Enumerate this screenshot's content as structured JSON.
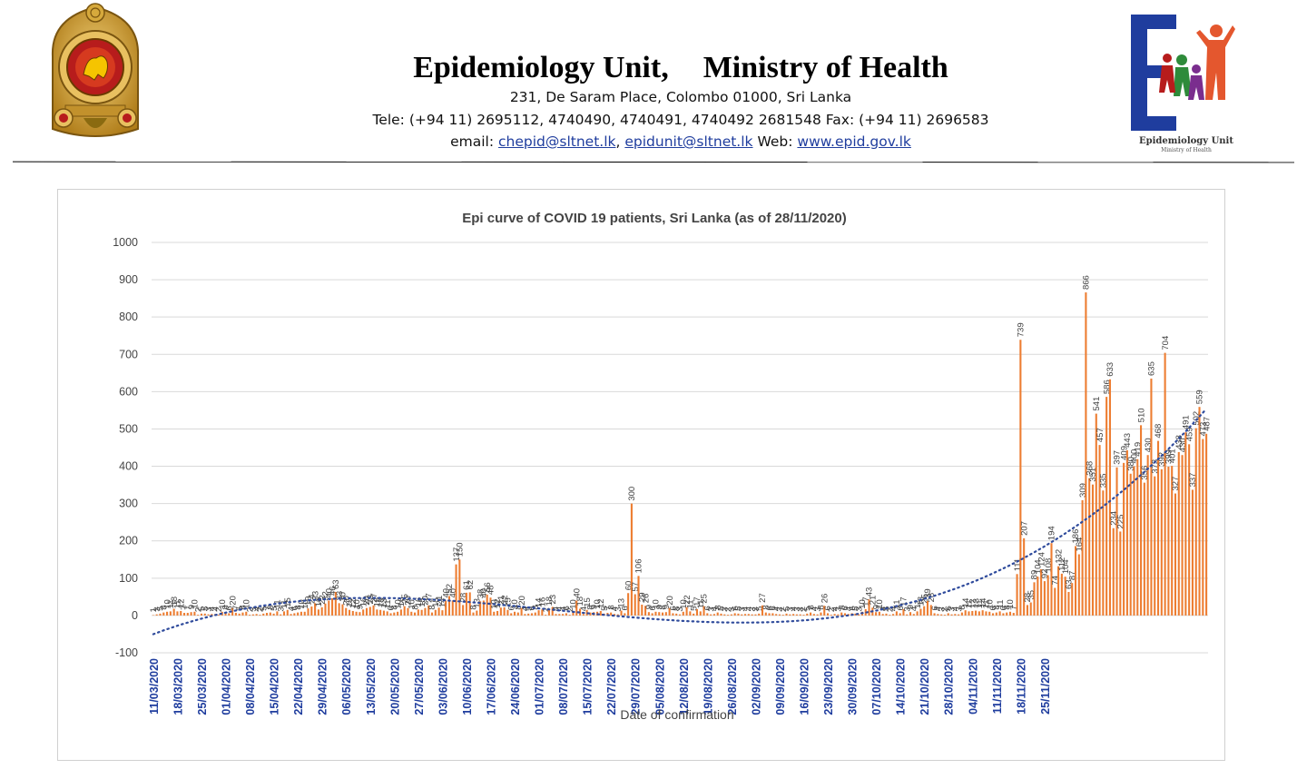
{
  "header": {
    "org_name": "Epidemiology Unit,",
    "ministry": "Ministry of Health",
    "address": "231, De Saram Place, Colombo 01000, Sri Lanka",
    "phone_line": "Tele: (+94 11) 2695112, 4740490, 4740491, 4740492 2681548  Fax: (+94 11) 2696583",
    "email_prefix": "email: ",
    "email_1": "chepid@sltnet.lk",
    "email_sep": ", ",
    "email_2": "epidunit@sltnet.lk",
    "web_prefix": " Web: ",
    "web": "www.epid.gov.lk",
    "right_logo_caption": "Epidemiology Unit",
    "right_logo_sub": "Ministry of Health",
    "link_color": "#1f3d9e"
  },
  "chart_data": {
    "type": "bar",
    "title": "Epi curve of COVID 19 patients, Sri Lanka  (as of 28/11/2020)",
    "xlabel": "Date of confirmation",
    "ylabel": "",
    "ylim": [
      -100,
      1000
    ],
    "yticks": [
      -100,
      0,
      100,
      200,
      300,
      400,
      500,
      600,
      700,
      800,
      900,
      1000
    ],
    "grid": true,
    "bar_color": "#ed7d31",
    "trend_color": "#2f4b9c",
    "xtick_color": "#1f3d9e",
    "date_labels": [
      "11/03/2020",
      "18/03/2020",
      "25/03/2020",
      "01/04/2020",
      "08/04/2020",
      "15/04/2020",
      "22/04/2020",
      "29/04/2020",
      "06/05/2020",
      "13/05/2020",
      "20/05/2020",
      "27/05/2020",
      "03/06/2020",
      "10/06/2020",
      "17/06/2020",
      "24/06/2020",
      "01/07/2020",
      "08/07/2020",
      "15/07/2020",
      "22/07/2020",
      "29/07/2020",
      "05/08/2020",
      "12/08/2020",
      "19/08/2020",
      "26/08/2020",
      "02/09/2020",
      "09/09/2020",
      "16/09/2020",
      "23/09/2020",
      "30/09/2020",
      "07/10/2020",
      "14/10/2020",
      "21/10/2020",
      "28/10/2020",
      "04/11/2020",
      "11/11/2020",
      "18/11/2020",
      "25/11/2020"
    ],
    "values": [
      1,
      3,
      5,
      8,
      10,
      11,
      18,
      11,
      12,
      7,
      7,
      9,
      10,
      2,
      5,
      5,
      3,
      4,
      4,
      2,
      10,
      8,
      6,
      20,
      7,
      5,
      8,
      10,
      2,
      3,
      4,
      2,
      5,
      7,
      8,
      5,
      11,
      3,
      11,
      15,
      4,
      6,
      8,
      10,
      10,
      19,
      24,
      33,
      16,
      22,
      32,
      40,
      46,
      63,
      33,
      30,
      20,
      15,
      12,
      10,
      9,
      16,
      20,
      23,
      27,
      16,
      15,
      13,
      11,
      6,
      8,
      10,
      16,
      25,
      20,
      10,
      8,
      16,
      15,
      20,
      27,
      8,
      15,
      21,
      14,
      40,
      52,
      40,
      137,
      150,
      28,
      61,
      62,
      8,
      13,
      38,
      40,
      56,
      48,
      10,
      12,
      21,
      22,
      15,
      6,
      10,
      8,
      20,
      4,
      5,
      6,
      8,
      14,
      16,
      2,
      18,
      23,
      4,
      4,
      4,
      6,
      2,
      10,
      40,
      18,
      4,
      15,
      8,
      9,
      10,
      12,
      5,
      7,
      8,
      4,
      3,
      13,
      6,
      60,
      300,
      57,
      106,
      29,
      26,
      9,
      6,
      10,
      9,
      8,
      9,
      20,
      6,
      5,
      3,
      10,
      22,
      11,
      5,
      17,
      11,
      25,
      6,
      3,
      4,
      8,
      5,
      3,
      2,
      3,
      6,
      5,
      3,
      4,
      4,
      3,
      3,
      5,
      27,
      8,
      6,
      6,
      4,
      3,
      2,
      5,
      3,
      4,
      3,
      3,
      2,
      5,
      8,
      4,
      3,
      8,
      26,
      6,
      2,
      4,
      3,
      8,
      6,
      4,
      6,
      5,
      3,
      10,
      17,
      43,
      21,
      9,
      10,
      4,
      5,
      2,
      4,
      11,
      6,
      17,
      3,
      9,
      4,
      11,
      18,
      25,
      39,
      28,
      6,
      4,
      3,
      2,
      6,
      3,
      4,
      3,
      8,
      14,
      11,
      12,
      13,
      11,
      14,
      11,
      10,
      6,
      8,
      11,
      6,
      8,
      10,
      7,
      111,
      739,
      207,
      28,
      35,
      89,
      104,
      124,
      92,
      108,
      194,
      74,
      132,
      112,
      104,
      63,
      87,
      186,
      164,
      309,
      866,
      368,
      351,
      541,
      457,
      335,
      586,
      633,
      234,
      397,
      225,
      409,
      443,
      380,
      400,
      419,
      510,
      356,
      430,
      635,
      373,
      468,
      392,
      704,
      399,
      401,
      327,
      438,
      430,
      491,
      459,
      337,
      502,
      559,
      473,
      487
    ]
  }
}
